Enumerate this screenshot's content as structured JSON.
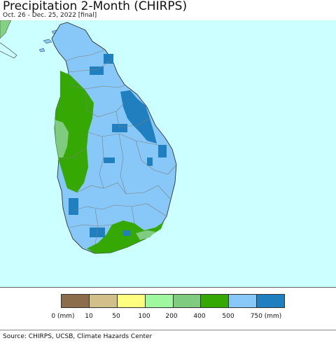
{
  "header": {
    "title": "Precipitation 2-Month (CHIRPS)",
    "subtitle": "Oct. 26 - Dec. 25, 2022 [final]"
  },
  "map": {
    "ocean_color": "#ccffff",
    "land_outside_color": "#82d282",
    "boundary_color": "#7f7f7f"
  },
  "legend": {
    "classes": [
      {
        "color": "#8b6d4b",
        "label": "0 (mm)"
      },
      {
        "color": "#d2c08a",
        "label": "10"
      },
      {
        "color": "#ffff7f",
        "label": "50"
      },
      {
        "color": "#9ff79f",
        "label": "100"
      },
      {
        "color": "#7fcb7f",
        "label": "200"
      },
      {
        "color": "#36a804",
        "label": "400"
      },
      {
        "color": "#87c8f8",
        "label": "500"
      },
      {
        "color": "#1f7fbf",
        "label": "750 (mm)"
      }
    ]
  },
  "footer": {
    "source": "Source: CHIRPS, UCSB, Climate Hazards Center"
  }
}
